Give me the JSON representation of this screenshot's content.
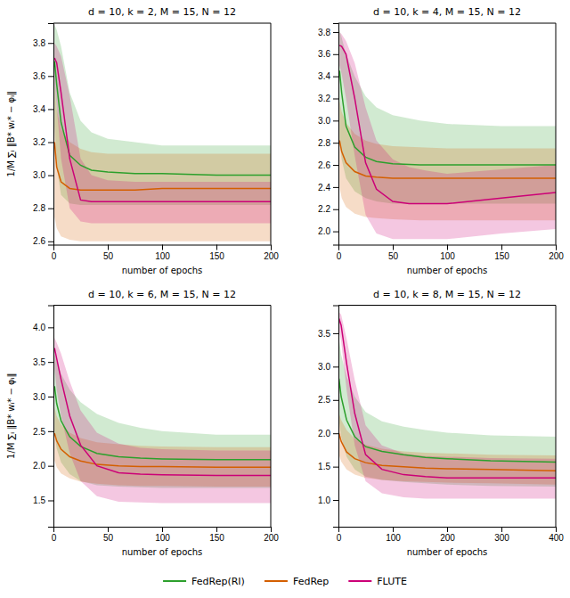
{
  "chart_data": [
    {
      "type": "line",
      "title": "d = 10, k = 2, M = 15, N = 12",
      "xlabel": "number of epochs",
      "ylabel": "1/M ∑ᵢ ‖B* wᵢ* − φᵢ‖",
      "xlim": [
        0,
        200
      ],
      "ylim": [
        2.58,
        3.92
      ],
      "xticks": [
        0,
        50,
        100,
        150,
        200
      ],
      "yticks": [
        2.6,
        2.8,
        {
          "value": 3,
          "label": "3.0"
        },
        3.2,
        3.4,
        3.6,
        3.8
      ],
      "legend": "bottom",
      "series": [
        {
          "name": "FedRep(RI)",
          "color": "#2ca02c",
          "x": [
            1,
            3,
            7,
            15,
            25,
            35,
            50,
            75,
            100,
            150,
            200
          ],
          "values": [
            3.69,
            3.55,
            3.32,
            3.12,
            3.06,
            3.03,
            3.02,
            3.01,
            3.01,
            3.0,
            3.0
          ],
          "lower": [
            3.3,
            3.05,
            2.88,
            2.83,
            2.82,
            2.82,
            2.82,
            2.82,
            2.82,
            2.82,
            2.82
          ],
          "upper": [
            3.91,
            3.88,
            3.78,
            3.5,
            3.33,
            3.26,
            3.22,
            3.2,
            3.18,
            3.18,
            3.18
          ]
        },
        {
          "name": "FedRep",
          "color": "#d45f00",
          "x": [
            1,
            3,
            7,
            15,
            25,
            35,
            50,
            75,
            100,
            150,
            200
          ],
          "values": [
            3.2,
            3.05,
            2.96,
            2.92,
            2.91,
            2.91,
            2.91,
            2.91,
            2.92,
            2.92,
            2.92
          ],
          "lower": [
            2.75,
            2.68,
            2.63,
            2.61,
            2.6,
            2.6,
            2.6,
            2.6,
            2.6,
            2.6,
            2.6
          ],
          "upper": [
            3.55,
            3.4,
            3.28,
            3.2,
            3.16,
            3.14,
            3.13,
            3.13,
            3.13,
            3.13,
            3.13
          ]
        },
        {
          "name": "FLUTE",
          "color": "#cc0077",
          "x": [
            1,
            3,
            7,
            15,
            25,
            35,
            50,
            75,
            100,
            150,
            200
          ],
          "values": [
            3.71,
            3.68,
            3.5,
            3.1,
            2.85,
            2.84,
            2.84,
            2.84,
            2.84,
            2.84,
            2.84
          ],
          "lower": [
            3.55,
            3.42,
            3.1,
            2.8,
            2.72,
            2.71,
            2.71,
            2.71,
            2.71,
            2.71,
            2.71
          ],
          "upper": [
            3.8,
            3.78,
            3.72,
            3.48,
            3.1,
            3.0,
            2.97,
            2.96,
            2.96,
            2.96,
            2.96
          ]
        }
      ]
    },
    {
      "type": "line",
      "title": "d = 10, k = 4, M = 15, N = 12",
      "xlabel": "number of epochs",
      "xlim": [
        0,
        200
      ],
      "ylim": [
        1.88,
        3.88
      ],
      "xticks": [
        0,
        50,
        100,
        150,
        200
      ],
      "yticks": [
        {
          "value": 2,
          "label": "2.0"
        },
        2.2,
        2.4,
        2.6,
        2.8,
        {
          "value": 3,
          "label": "3.0"
        },
        3.2,
        3.4,
        3.6,
        3.8
      ],
      "series": [
        {
          "color": "#2ca02c",
          "x": [
            1,
            3,
            7,
            15,
            25,
            35,
            50,
            75,
            100,
            150,
            200
          ],
          "values": [
            3.45,
            3.25,
            2.95,
            2.76,
            2.67,
            2.63,
            2.61,
            2.6,
            2.6,
            2.6,
            2.6
          ],
          "lower": [
            2.82,
            2.65,
            2.48,
            2.36,
            2.3,
            2.27,
            2.25,
            2.25,
            2.25,
            2.25,
            2.25
          ],
          "upper": [
            3.82,
            3.75,
            3.6,
            3.4,
            3.22,
            3.12,
            3.05,
            3.0,
            2.97,
            2.95,
            2.95
          ]
        },
        {
          "color": "#d45f00",
          "x": [
            1,
            3,
            7,
            15,
            25,
            35,
            50,
            75,
            100,
            150,
            200
          ],
          "values": [
            2.82,
            2.72,
            2.62,
            2.54,
            2.5,
            2.49,
            2.48,
            2.48,
            2.48,
            2.48,
            2.48
          ],
          "lower": [
            2.4,
            2.3,
            2.22,
            2.16,
            2.13,
            2.12,
            2.11,
            2.1,
            2.1,
            2.1,
            2.1
          ],
          "upper": [
            3.18,
            3.08,
            2.98,
            2.88,
            2.82,
            2.79,
            2.77,
            2.76,
            2.75,
            2.75,
            2.75
          ]
        },
        {
          "color": "#cc0077",
          "x": [
            1,
            3,
            7,
            15,
            25,
            35,
            50,
            65,
            80,
            100,
            150,
            200
          ],
          "values": [
            3.68,
            3.67,
            3.6,
            3.2,
            2.62,
            2.38,
            2.27,
            2.25,
            2.25,
            2.25,
            2.3,
            2.35
          ],
          "lower": [
            3.5,
            3.42,
            3.2,
            2.68,
            2.15,
            1.98,
            1.93,
            1.93,
            1.93,
            1.93,
            1.98,
            2.02
          ],
          "upper": [
            3.8,
            3.78,
            3.72,
            3.52,
            3.12,
            2.82,
            2.65,
            2.58,
            2.55,
            2.52,
            2.56,
            2.6
          ]
        }
      ]
    },
    {
      "type": "line",
      "title": "d = 10, k = 6, M = 15, N = 12",
      "xlabel": "number of epochs",
      "ylabel": "1/M ∑ᵢ ‖B* wᵢ* − φᵢ‖",
      "xlim": [
        0,
        200
      ],
      "ylim": [
        1.12,
        4.32
      ],
      "xticks": [
        0,
        50,
        100,
        150,
        200
      ],
      "yticks": [
        1.5,
        {
          "value": 2,
          "label": "2.0"
        },
        2.5,
        {
          "value": 3,
          "label": "3.0"
        },
        3.5,
        {
          "value": 4,
          "label": "4.0"
        }
      ],
      "series": [
        {
          "color": "#2ca02c",
          "x": [
            1,
            3,
            7,
            15,
            25,
            40,
            60,
            80,
            100,
            150,
            200
          ],
          "values": [
            3.15,
            2.9,
            2.65,
            2.42,
            2.28,
            2.18,
            2.13,
            2.11,
            2.1,
            2.09,
            2.09
          ],
          "lower": [
            2.48,
            2.25,
            2.05,
            1.88,
            1.78,
            1.72,
            1.7,
            1.69,
            1.68,
            1.68,
            1.68
          ],
          "upper": [
            3.62,
            3.5,
            3.33,
            3.1,
            2.92,
            2.75,
            2.62,
            2.55,
            2.5,
            2.45,
            2.45
          ]
        },
        {
          "color": "#d45f00",
          "x": [
            1,
            3,
            7,
            15,
            25,
            40,
            60,
            80,
            100,
            150,
            200
          ],
          "values": [
            2.47,
            2.36,
            2.24,
            2.13,
            2.07,
            2.02,
            2.0,
            1.99,
            1.99,
            1.98,
            1.98
          ],
          "lower": [
            2.08,
            1.98,
            1.89,
            1.82,
            1.77,
            1.74,
            1.72,
            1.71,
            1.71,
            1.7,
            1.7
          ],
          "upper": [
            2.85,
            2.72,
            2.6,
            2.48,
            2.4,
            2.34,
            2.31,
            2.29,
            2.28,
            2.27,
            2.27
          ]
        },
        {
          "color": "#cc0077",
          "x": [
            1,
            3,
            7,
            15,
            25,
            40,
            60,
            80,
            100,
            150,
            200
          ],
          "values": [
            3.7,
            3.55,
            3.25,
            2.72,
            2.3,
            2.0,
            1.9,
            1.88,
            1.87,
            1.86,
            1.86
          ],
          "lower": [
            3.4,
            3.1,
            2.72,
            2.18,
            1.78,
            1.56,
            1.48,
            1.47,
            1.46,
            1.46,
            1.46
          ],
          "upper": [
            3.85,
            3.78,
            3.62,
            3.22,
            2.8,
            2.48,
            2.32,
            2.26,
            2.24,
            2.22,
            2.22
          ]
        }
      ]
    },
    {
      "type": "line",
      "title": "d = 10, k = 8, M = 15, N = 12",
      "xlabel": "number of epochs",
      "xlim": [
        0,
        400
      ],
      "ylim": [
        0.6,
        3.92
      ],
      "xticks": [
        0,
        100,
        200,
        300,
        400
      ],
      "yticks": [
        {
          "value": 1,
          "label": "1.0"
        },
        1.5,
        {
          "value": 2,
          "label": "2.0"
        },
        2.5,
        {
          "value": 3,
          "label": "3.0"
        },
        3.5
      ],
      "series": [
        {
          "color": "#2ca02c",
          "x": [
            1,
            5,
            15,
            30,
            50,
            80,
            120,
            160,
            200,
            280,
            400
          ],
          "values": [
            2.82,
            2.55,
            2.2,
            1.95,
            1.8,
            1.73,
            1.68,
            1.64,
            1.62,
            1.59,
            1.57
          ],
          "lower": [
            2.2,
            1.95,
            1.65,
            1.46,
            1.35,
            1.3,
            1.27,
            1.25,
            1.23,
            1.21,
            1.2
          ],
          "upper": [
            3.42,
            3.18,
            2.85,
            2.55,
            2.32,
            2.18,
            2.1,
            2.05,
            2.01,
            1.97,
            1.95
          ]
        },
        {
          "color": "#d45f00",
          "x": [
            1,
            5,
            15,
            30,
            50,
            80,
            120,
            160,
            200,
            280,
            400
          ],
          "values": [
            2.0,
            1.88,
            1.72,
            1.62,
            1.56,
            1.52,
            1.5,
            1.48,
            1.47,
            1.46,
            1.44
          ],
          "lower": [
            1.68,
            1.58,
            1.46,
            1.38,
            1.33,
            1.3,
            1.28,
            1.27,
            1.26,
            1.25,
            1.23
          ],
          "upper": [
            2.3,
            2.2,
            2.05,
            1.92,
            1.83,
            1.77,
            1.73,
            1.71,
            1.7,
            1.68,
            1.67
          ]
        },
        {
          "color": "#cc0077",
          "x": [
            1,
            5,
            15,
            30,
            50,
            80,
            120,
            160,
            200,
            280,
            400
          ],
          "values": [
            3.72,
            3.62,
            3.05,
            2.3,
            1.68,
            1.46,
            1.38,
            1.35,
            1.33,
            1.33,
            1.33
          ],
          "lower": [
            3.55,
            3.38,
            2.65,
            1.82,
            1.28,
            1.1,
            1.04,
            1.02,
            1.02,
            1.02,
            1.02
          ],
          "upper": [
            3.82,
            3.78,
            3.42,
            2.8,
            2.12,
            1.82,
            1.7,
            1.66,
            1.65,
            1.63,
            1.62
          ]
        }
      ]
    }
  ]
}
